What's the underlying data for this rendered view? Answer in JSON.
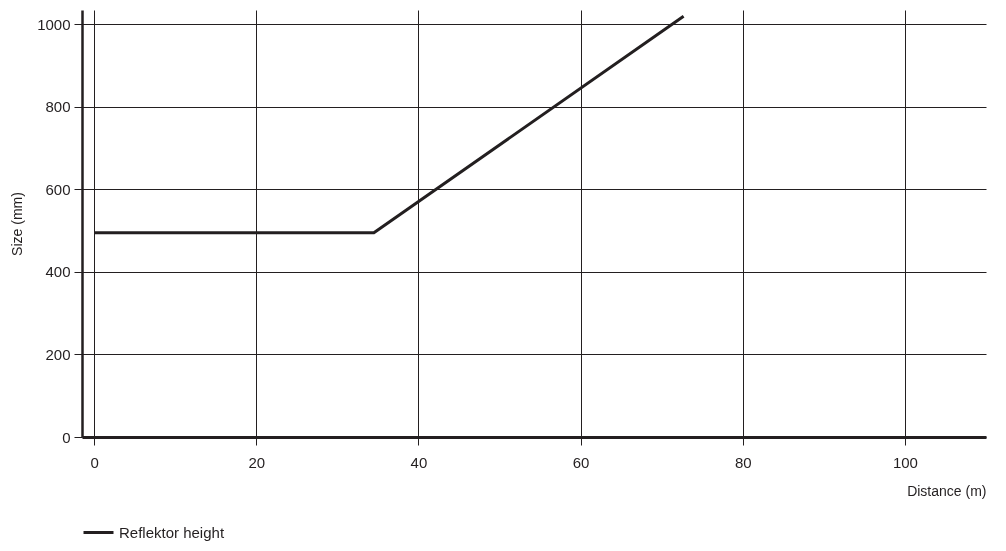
{
  "chart_data": {
    "type": "line",
    "xlabel": "Distance (m)",
    "ylabel": "Size (mm)",
    "series": [
      {
        "name": "Reflektor height",
        "color": "#231f20",
        "x": [
          0,
          34.5,
          72.7
        ],
        "values": [
          495,
          495,
          1020
        ]
      }
    ],
    "xlim": [
      -1.5,
      110
    ],
    "ylim": [
      0,
      1035
    ],
    "xticks": [
      0,
      20,
      40,
      60,
      80,
      100
    ],
    "yticks": [
      0,
      200,
      400,
      600,
      800,
      1000
    ],
    "grid": true,
    "legend": "bottom left",
    "marker": "none",
    "line_style": "solid"
  }
}
